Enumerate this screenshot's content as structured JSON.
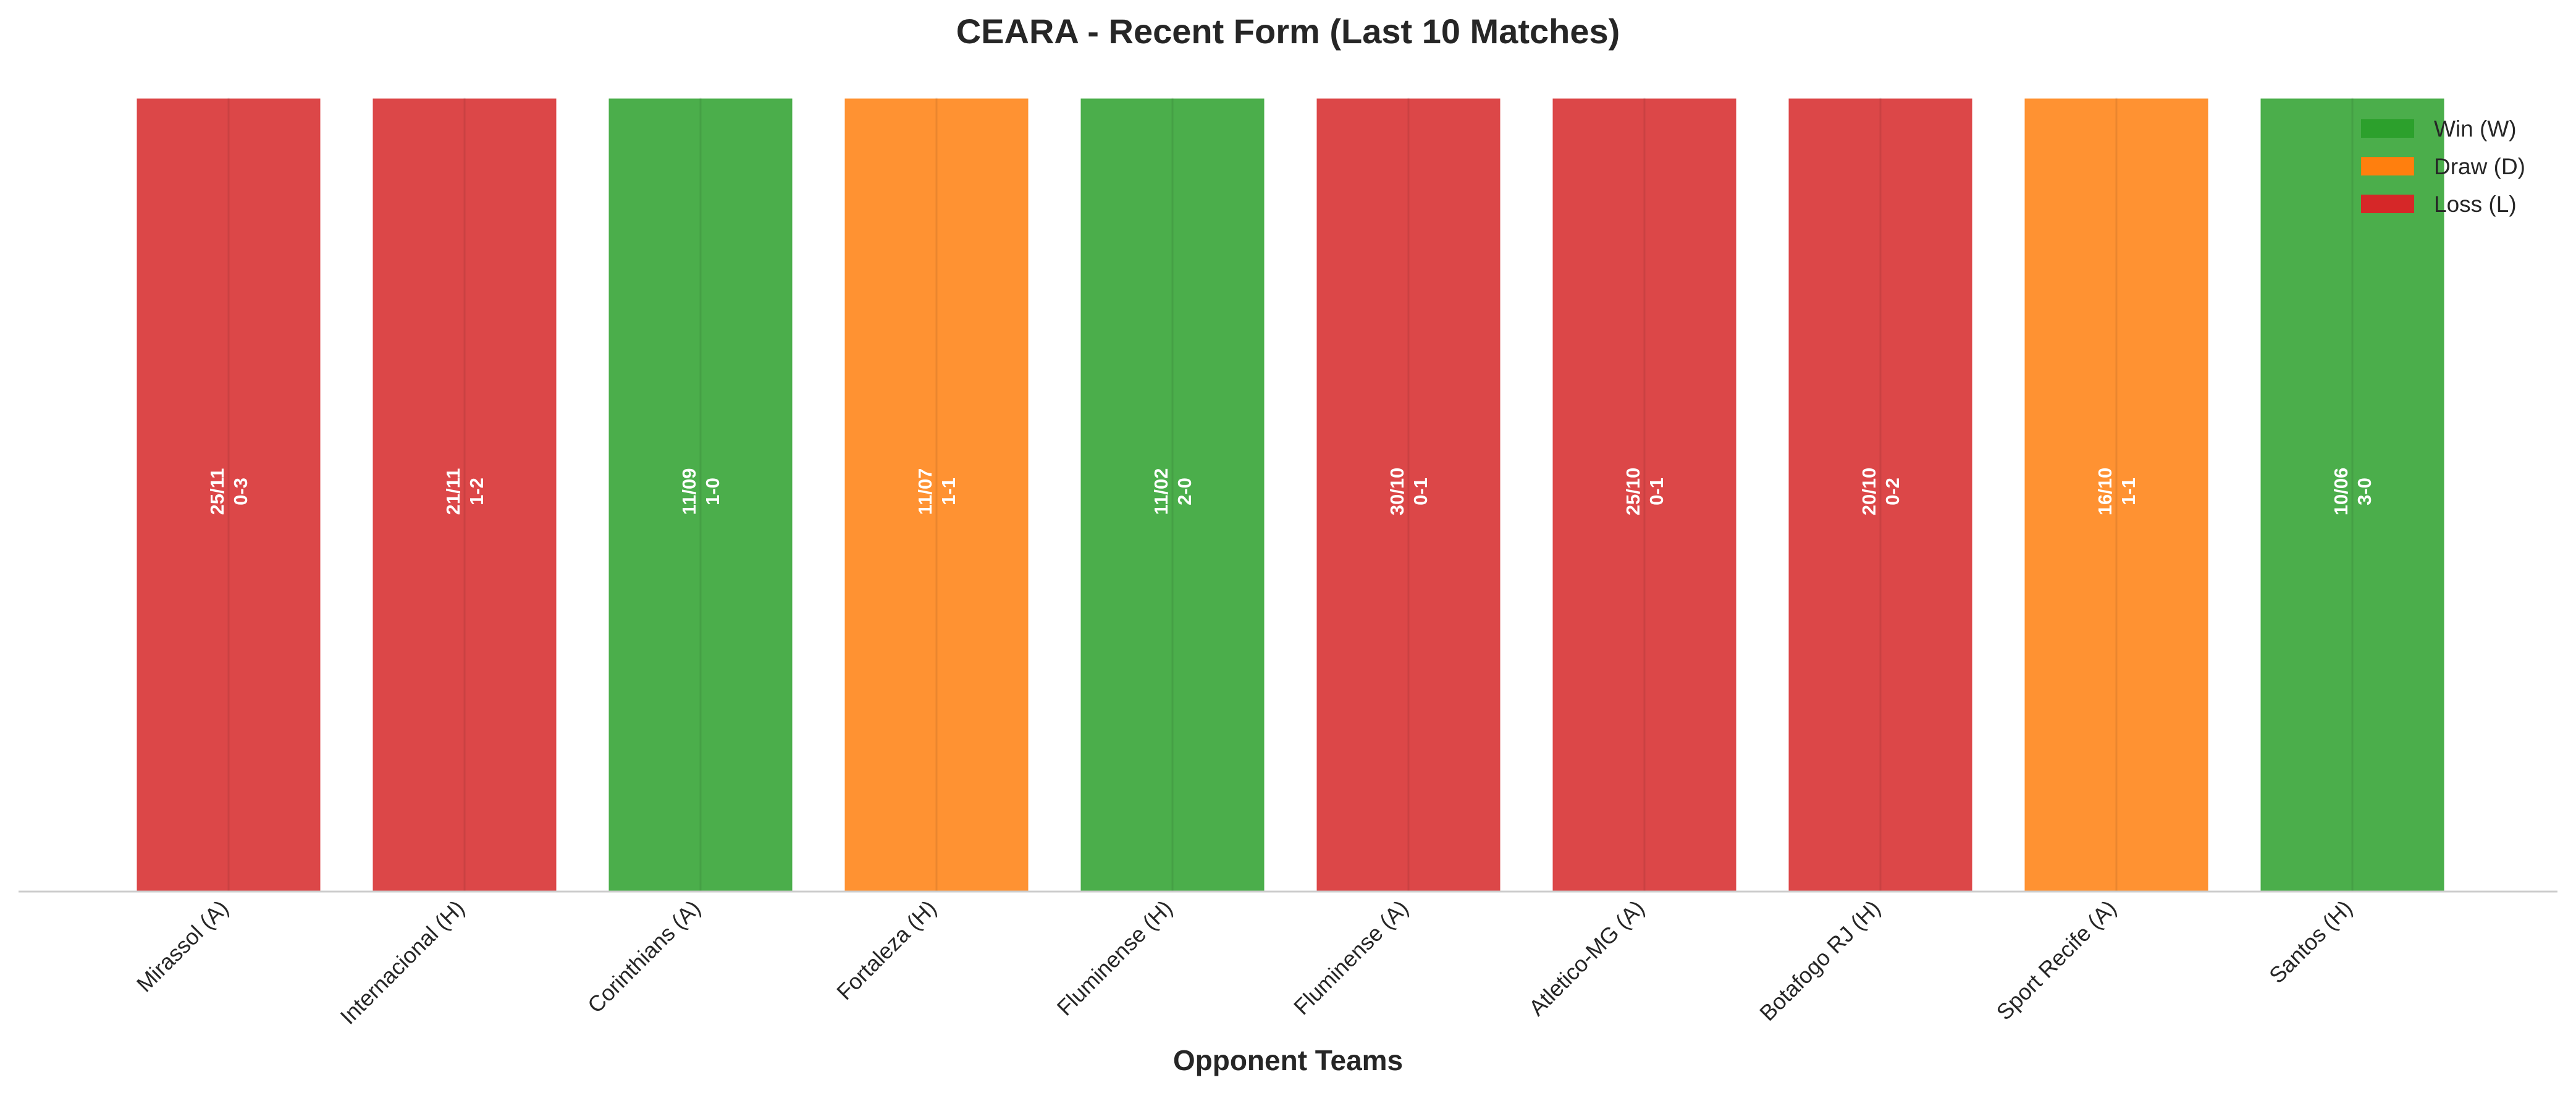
{
  "chart_data": {
    "type": "bar",
    "title": "CEARA - Recent Form (Last 10 Matches)",
    "xlabel": "Opponent Teams",
    "ylabel": "",
    "ylim": [
      0,
      1
    ],
    "grid": false,
    "legend_position": "top-right",
    "categories": [
      "Mirassol (A)",
      "Internacional (H)",
      "Corinthians (A)",
      "Fortaleza (H)",
      "Fluminense (H)",
      "Fluminense (A)",
      "Atletico-MG (A)",
      "Botafogo RJ (H)",
      "Sport Recife (A)",
      "Santos (H)"
    ],
    "values": [
      1,
      1,
      1,
      1,
      1,
      1,
      1,
      1,
      1,
      1
    ],
    "results": [
      "L",
      "L",
      "W",
      "D",
      "W",
      "L",
      "L",
      "L",
      "D",
      "W"
    ],
    "dates": [
      "25/11",
      "21/11",
      "11/09",
      "11/07",
      "11/02",
      "30/10",
      "25/10",
      "20/10",
      "16/10",
      "10/06"
    ],
    "scores": [
      "0-3",
      "1-2",
      "1-0",
      "1-1",
      "2-0",
      "0-1",
      "0-1",
      "0-2",
      "1-1",
      "3-0"
    ],
    "legend": [
      {
        "key": "W",
        "label": "Win (W)",
        "color": "#2ca02c"
      },
      {
        "key": "D",
        "label": "Draw (D)",
        "color": "#ff7f0e"
      },
      {
        "key": "L",
        "label": "Loss (L)",
        "color": "#d62728"
      }
    ]
  }
}
